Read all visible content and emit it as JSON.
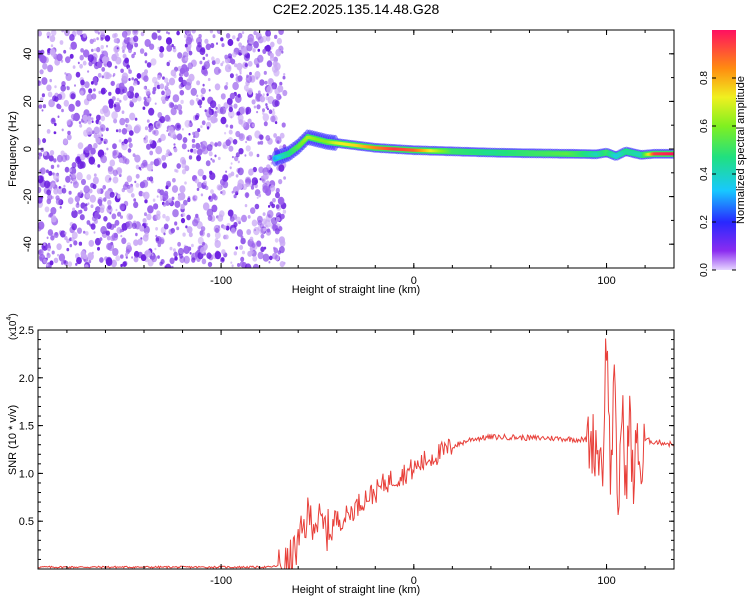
{
  "figure_title": "C2E2.2025.135.14.48.G28",
  "colors": {
    "noise_dark": "#6b1fe0",
    "noise_light": "#c9a8f5",
    "snr_line": "#e8403a",
    "axes": "#000000"
  },
  "chart_data": [
    {
      "type": "heatmap",
      "xlabel": "Height of straight line (km)",
      "ylabel": "Frequency (Hz)",
      "xlim": [
        -195,
        135
      ],
      "ylim": [
        -50,
        50
      ],
      "x_ticks": [
        -100,
        0,
        100
      ],
      "y_ticks": [
        40,
        20,
        0,
        -20,
        -40
      ],
      "noise_region_x": [
        -195,
        -70
      ],
      "colorbar": {
        "label": "Normalized spectral amplitude",
        "range": [
          0,
          1
        ],
        "ticks": [
          "0.0",
          "0.2",
          "0.4",
          "0.6",
          "0.8"
        ],
        "colormap": "rainbow (violet to red)"
      },
      "ridge": {
        "x": [
          -72,
          -65,
          -60,
          -55,
          -50,
          -45,
          -40,
          -30,
          -20,
          -10,
          0,
          20,
          40,
          60,
          80,
          95,
          100,
          105,
          110,
          118,
          125,
          135
        ],
        "frequency": [
          -4,
          -2,
          1,
          5,
          4,
          3,
          2.5,
          1.5,
          0.5,
          0,
          -0.5,
          -1,
          -1.5,
          -1.8,
          -2,
          -2.2,
          -1.5,
          -3,
          -1,
          -2.5,
          -2,
          -2
        ],
        "amplitude": [
          0.3,
          0.45,
          0.55,
          0.65,
          0.6,
          0.6,
          0.7,
          0.75,
          0.85,
          0.95,
          0.9,
          0.5,
          0.45,
          0.5,
          0.55,
          0.4,
          0.5,
          0.35,
          0.45,
          0.4,
          0.95,
          1.0
        ]
      }
    },
    {
      "type": "line",
      "xlabel": "Height of straight line (km)",
      "ylabel": "SNR (10 * v/v)",
      "y_scale_label": "(x10",
      "y_scale_exponent": "4",
      "xlim": [
        -195,
        135
      ],
      "ylim": [
        0,
        2.5
      ],
      "x_ticks": [
        -100,
        0,
        100
      ],
      "y_ticks": [
        "0.5",
        "1.0",
        "1.5",
        "2.0",
        "2.5"
      ],
      "series": [
        {
          "x": [
            -195,
            -150,
            -100,
            -75,
            -65,
            -60,
            -55,
            -50,
            -45,
            -40,
            -35,
            -30,
            -25,
            -20,
            -15,
            -10,
            -5,
            0,
            5,
            10,
            15,
            20,
            25,
            30,
            40,
            50,
            60,
            70,
            80,
            90,
            95,
            98,
            100,
            102,
            104,
            106,
            108,
            110,
            112,
            114,
            116,
            118,
            120,
            125,
            130,
            135
          ],
          "y": [
            0.02,
            0.02,
            0.02,
            0.02,
            0.05,
            0.25,
            0.55,
            0.5,
            0.4,
            0.5,
            0.55,
            0.65,
            0.75,
            0.8,
            0.9,
            0.95,
            1.0,
            1.05,
            1.12,
            1.18,
            1.22,
            1.28,
            1.32,
            1.36,
            1.38,
            1.38,
            1.37,
            1.37,
            1.36,
            1.35,
            1.3,
            1.1,
            2.5,
            1.0,
            1.9,
            0.6,
            1.7,
            0.9,
            1.6,
            0.8,
            1.5,
            0.9,
            1.35,
            1.33,
            1.32,
            1.3
          ]
        }
      ]
    }
  ]
}
